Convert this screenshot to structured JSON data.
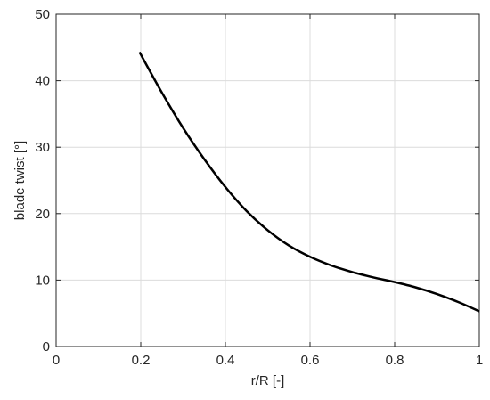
{
  "chart_data": {
    "type": "line",
    "xlabel": "r/R [-]",
    "ylabel": "blade twist [°]",
    "xlim": [
      0,
      1
    ],
    "ylim": [
      0,
      50
    ],
    "x_ticks": [
      0,
      0.2,
      0.4,
      0.6,
      0.8,
      1
    ],
    "x_tick_labels": [
      "0",
      "0.2",
      "0.4",
      "0.6",
      "0.8",
      "1"
    ],
    "y_ticks": [
      0,
      10,
      20,
      30,
      40,
      50
    ],
    "y_tick_labels": [
      "0",
      "10",
      "20",
      "30",
      "40",
      "50"
    ],
    "grid": true,
    "series": [
      {
        "color": "#000000",
        "x": [
          0.197,
          0.25,
          0.3,
          0.35,
          0.4,
          0.45,
          0.5,
          0.55,
          0.6,
          0.65,
          0.7,
          0.75,
          0.8,
          0.85,
          0.9,
          0.95,
          1.0
        ],
        "y": [
          44.3,
          38.2,
          32.9,
          28.2,
          24.0,
          20.4,
          17.5,
          15.2,
          13.5,
          12.2,
          11.2,
          10.4,
          9.7,
          8.9,
          7.9,
          6.7,
          5.3
        ]
      }
    ]
  }
}
